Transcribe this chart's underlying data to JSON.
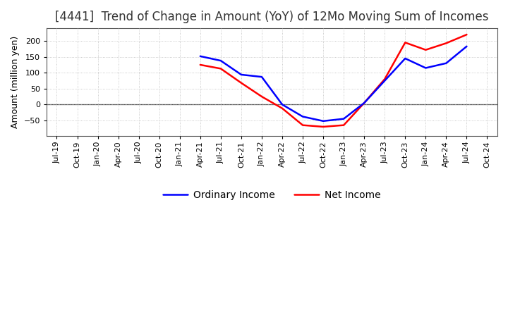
{
  "title": "[4441]  Trend of Change in Amount (YoY) of 12Mo Moving Sum of Incomes",
  "ylabel": "Amount (million yen)",
  "all_dates": [
    "Jul-19",
    "Oct-19",
    "Jan-20",
    "Apr-20",
    "Jul-20",
    "Oct-20",
    "Jan-21",
    "Apr-21",
    "Jul-21",
    "Oct-21",
    "Jan-22",
    "Apr-22",
    "Jul-22",
    "Oct-22",
    "Jan-23",
    "Apr-23",
    "Jul-23",
    "Oct-23",
    "Jan-24",
    "Apr-24",
    "Jul-24",
    "Oct-24"
  ],
  "ordinary_income_dates": [
    "Apr-21",
    "Jul-21",
    "Oct-21",
    "Jan-22",
    "Apr-22",
    "Jul-22",
    "Oct-22",
    "Jan-23",
    "Apr-23",
    "Jul-23",
    "Oct-23",
    "Jan-24",
    "Apr-24",
    "Jul-24"
  ],
  "ordinary_income_vals": [
    152,
    138,
    94,
    87,
    0,
    -38,
    -52,
    -45,
    5,
    75,
    145,
    115,
    130,
    183
  ],
  "net_income_dates": [
    "Apr-21",
    "Jul-21",
    "Oct-21",
    "Jan-22",
    "Apr-22",
    "Jul-22",
    "Oct-22",
    "Jan-23",
    "Apr-23",
    "Jul-23",
    "Oct-23",
    "Jan-24",
    "Apr-24",
    "Jul-24"
  ],
  "net_income_vals": [
    125,
    113,
    68,
    25,
    -12,
    -65,
    -70,
    -65,
    5,
    80,
    195,
    172,
    193,
    220
  ],
  "ylim": [
    -100,
    240
  ],
  "yticks": [
    -50,
    0,
    50,
    100,
    150,
    200
  ],
  "ordinary_color": "#0000FF",
  "net_color": "#FF0000",
  "grid_color": "#BBBBBB",
  "title_color": "#333333",
  "background_color": "#FFFFFF",
  "title_fontsize": 12,
  "axis_label_fontsize": 9,
  "tick_fontsize": 8,
  "legend_fontsize": 10
}
